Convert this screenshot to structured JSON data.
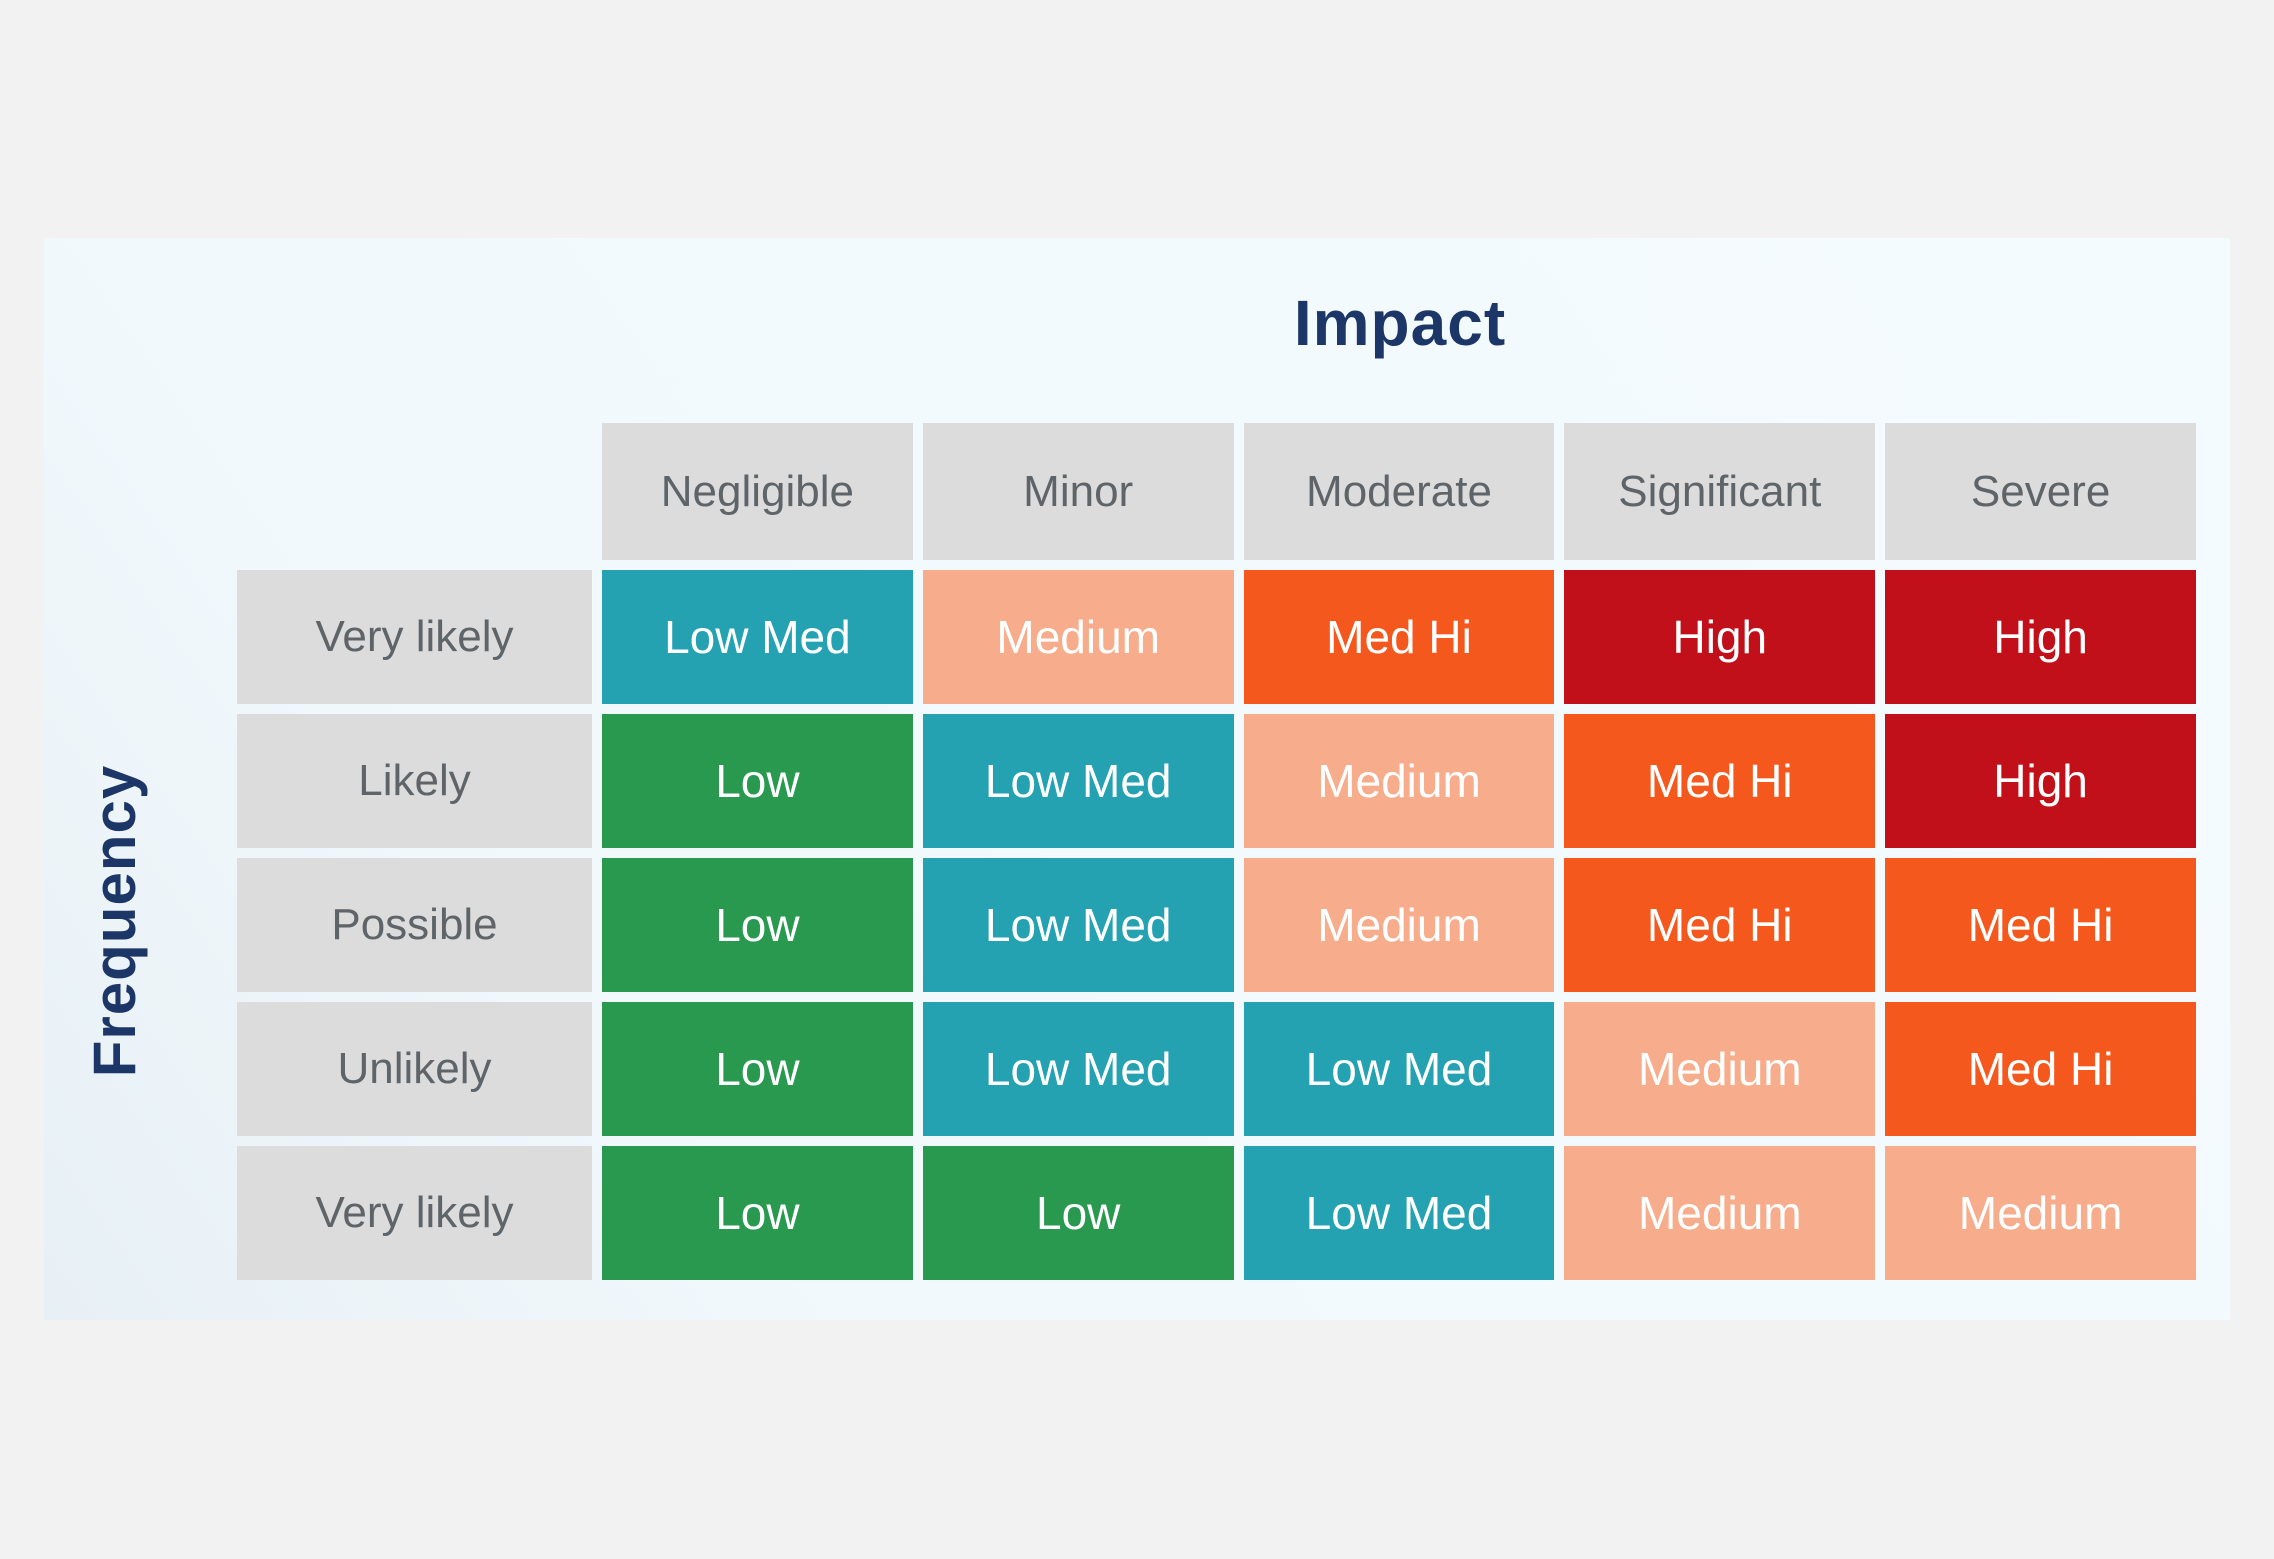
{
  "page": {
    "background": "#f1f2f1",
    "panel_background": "#f4fbfe"
  },
  "chart_data": {
    "type": "heatmap",
    "title": "Impact",
    "ylabel": "Frequency",
    "xlabel": "",
    "legend_position": "none",
    "grid": false,
    "columns": [
      "Negligible",
      "Minor",
      "Moderate",
      "Significant",
      "Severe"
    ],
    "rows": [
      "Very likely",
      "Likely",
      "Possible",
      "Unlikely",
      "Very likely"
    ],
    "cells": [
      [
        "Low Med",
        "Medium",
        "Med Hi",
        "High",
        "High"
      ],
      [
        "Low",
        "Low Med",
        "Medium",
        "Med Hi",
        "High"
      ],
      [
        "Low",
        "Low Med",
        "Medium",
        "Med Hi",
        "Med Hi"
      ],
      [
        "Low",
        "Low Med",
        "Low Med",
        "Medium",
        "Med Hi"
      ],
      [
        "Low",
        "Low",
        "Low Med",
        "Medium",
        "Medium"
      ]
    ],
    "levels": {
      "Low": "#28994f",
      "Low Med": "#24a2b2",
      "Medium": "#f7ad8b",
      "Med Hi": "#f4581d",
      "High": "#c1101a"
    },
    "header_background": "#dcdcdc",
    "header_text_color": "#5e6468",
    "cell_text_color": "#ffffff",
    "axis_title_color": "#1c3667"
  }
}
